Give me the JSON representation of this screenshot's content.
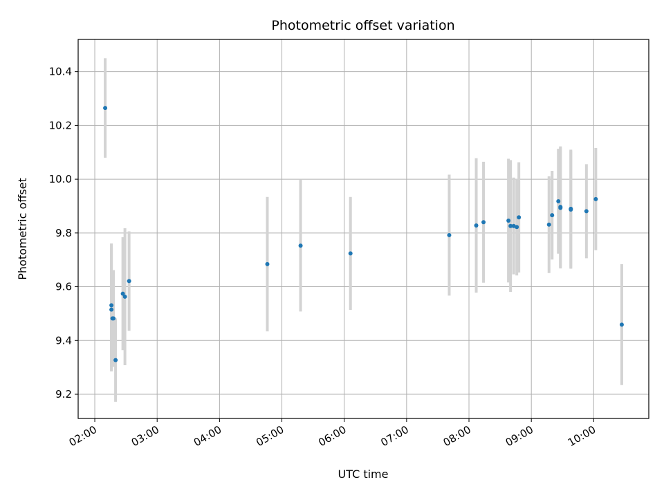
{
  "chart_data": {
    "type": "scatter",
    "title": "Photometric offset variation",
    "xlabel": "UTC time",
    "ylabel": "Photometric offset",
    "x_ticks": [
      "02:00",
      "03:00",
      "04:00",
      "05:00",
      "06:00",
      "07:00",
      "08:00",
      "09:00",
      "10:00"
    ],
    "y_ticks": [
      "9.2",
      "9.4",
      "9.6",
      "9.8",
      "10.0",
      "10.2",
      "10.4"
    ],
    "xlim": [
      "01:44",
      "10:53"
    ],
    "ylim": [
      9.11,
      10.52
    ],
    "grid": true,
    "point_color": "#1f77b4",
    "errorbar_color": "#d3d3d3",
    "points": [
      {
        "x": "02:10",
        "y": 10.265,
        "err": 0.185
      },
      {
        "x": "02:16",
        "y": 9.531,
        "err": 0.23
      },
      {
        "x": "02:16",
        "y": 9.515,
        "err": 0.23
      },
      {
        "x": "02:17",
        "y": 9.482,
        "err": 0.18
      },
      {
        "x": "02:18",
        "y": 9.482,
        "err": 0.18
      },
      {
        "x": "02:20",
        "y": 9.327,
        "err": 0.155
      },
      {
        "x": "02:27",
        "y": 9.574,
        "err": 0.21
      },
      {
        "x": "02:29",
        "y": 9.563,
        "err": 0.255
      },
      {
        "x": "02:33",
        "y": 9.621,
        "err": 0.185
      },
      {
        "x": "04:46",
        "y": 9.684,
        "err": 0.25
      },
      {
        "x": "05:18",
        "y": 9.753,
        "err": 0.245
      },
      {
        "x": "06:06",
        "y": 9.724,
        "err": 0.21
      },
      {
        "x": "07:41",
        "y": 9.792,
        "err": 0.225
      },
      {
        "x": "08:07",
        "y": 9.828,
        "err": 0.25
      },
      {
        "x": "08:14",
        "y": 9.84,
        "err": 0.225
      },
      {
        "x": "08:38",
        "y": 9.846,
        "err": 0.23
      },
      {
        "x": "08:40",
        "y": 9.826,
        "err": 0.245
      },
      {
        "x": "08:43",
        "y": 9.826,
        "err": 0.18
      },
      {
        "x": "08:46",
        "y": 9.822,
        "err": 0.18
      },
      {
        "x": "08:48",
        "y": 9.858,
        "err": 0.205
      },
      {
        "x": "09:17",
        "y": 9.831,
        "err": 0.18
      },
      {
        "x": "09:20",
        "y": 9.866,
        "err": 0.165
      },
      {
        "x": "09:26",
        "y": 9.918,
        "err": 0.195
      },
      {
        "x": "09:28",
        "y": 9.897,
        "err": 0.225
      },
      {
        "x": "09:28",
        "y": 9.893,
        "err": 0.225
      },
      {
        "x": "09:38",
        "y": 9.89,
        "err": 0.22
      },
      {
        "x": "09:38",
        "y": 9.887,
        "err": 0.22
      },
      {
        "x": "09:53",
        "y": 9.881,
        "err": 0.175
      },
      {
        "x": "10:02",
        "y": 9.926,
        "err": 0.19
      },
      {
        "x": "10:27",
        "y": 9.459,
        "err": 0.225
      }
    ]
  }
}
